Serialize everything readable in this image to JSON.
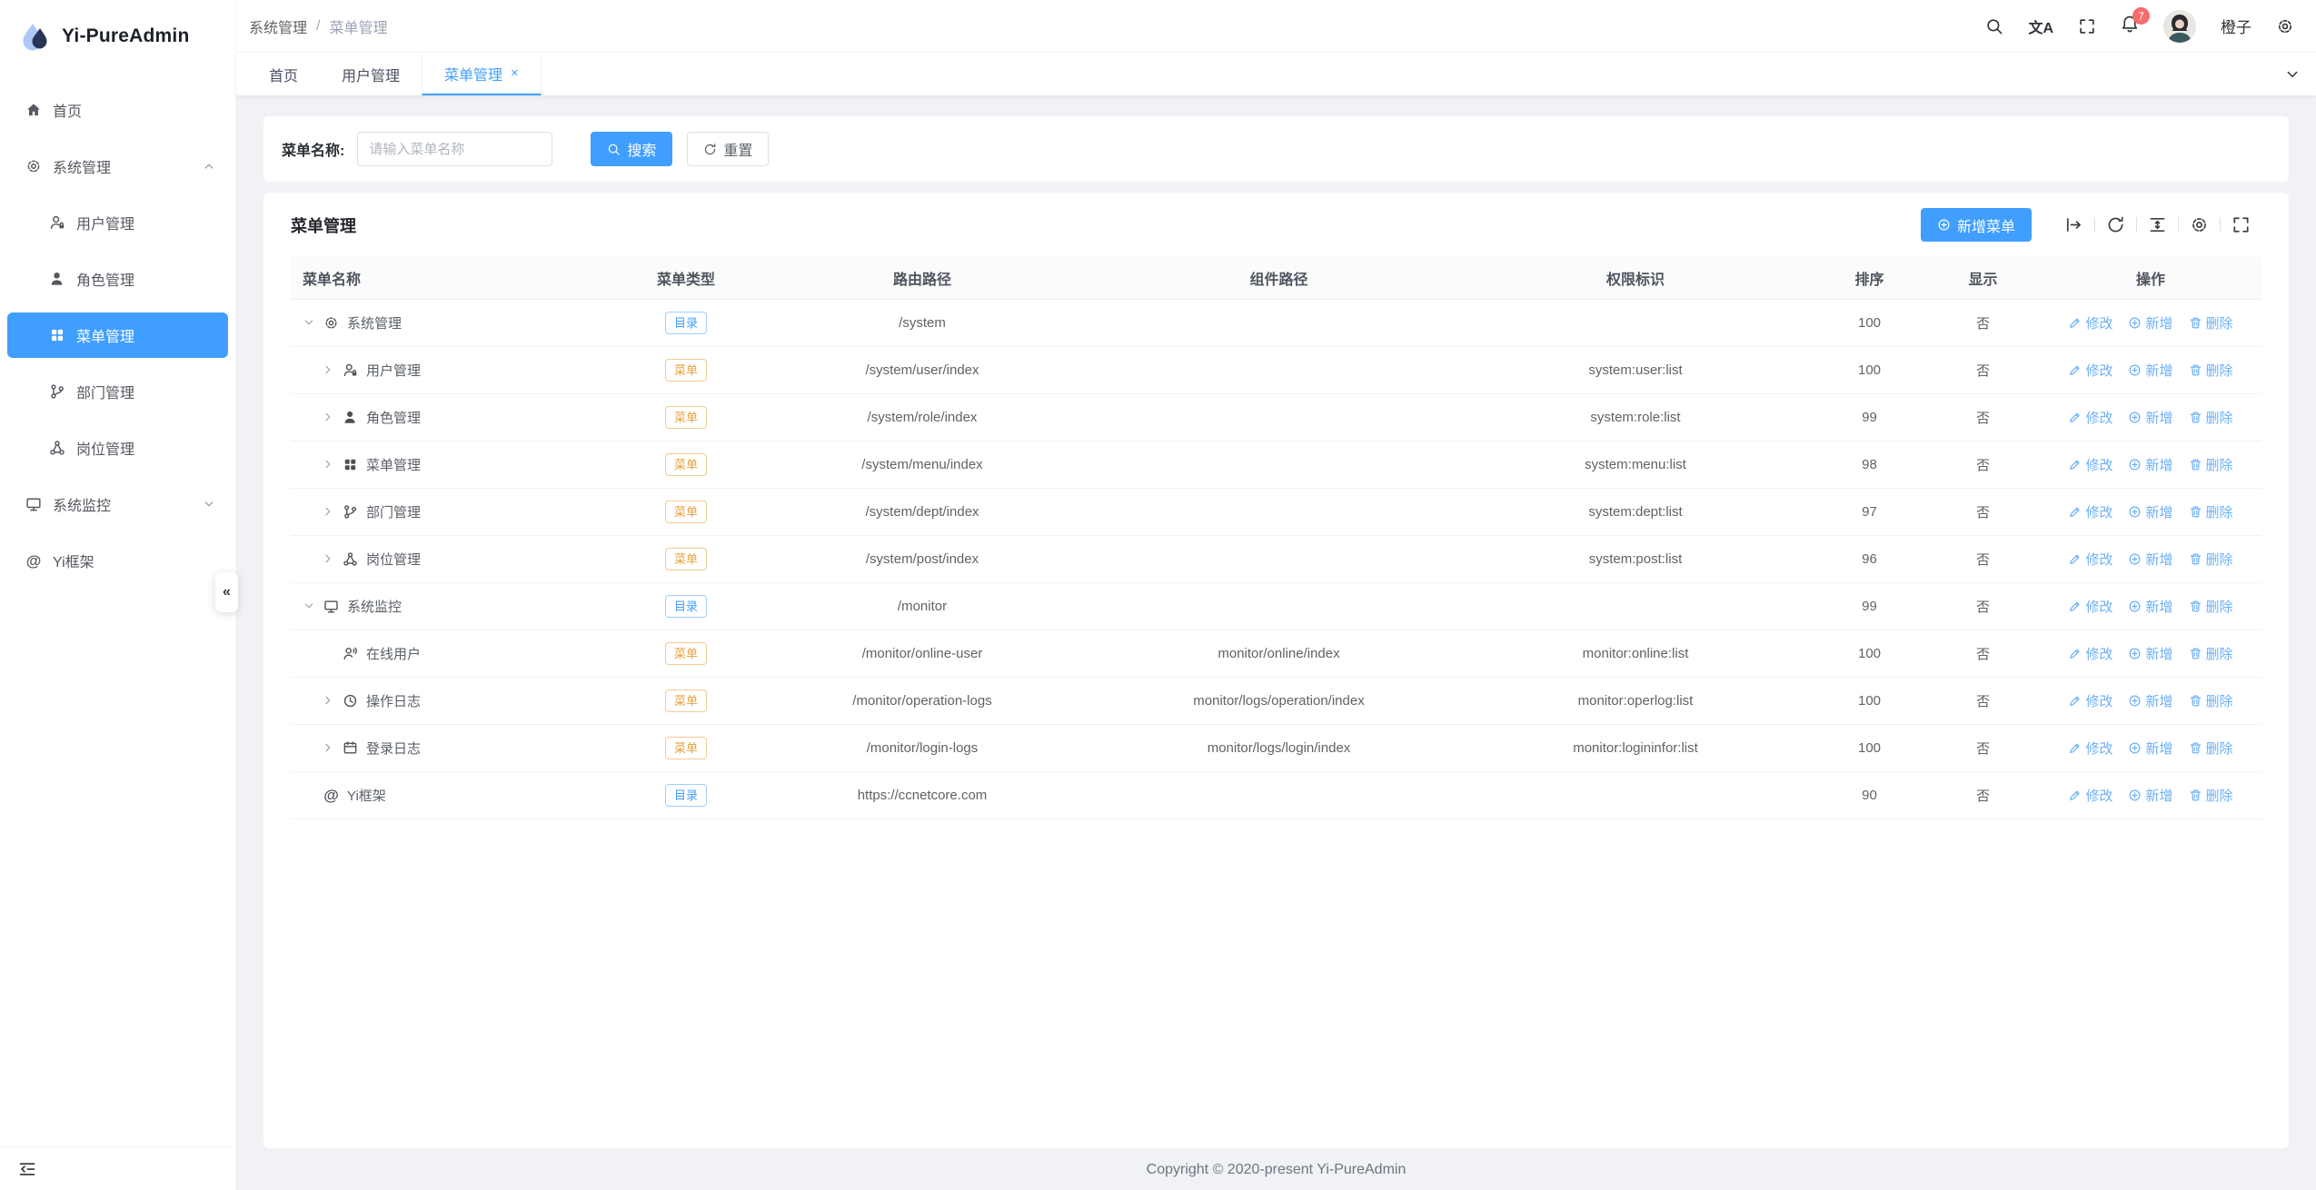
{
  "app": {
    "name": "Yi-PureAdmin"
  },
  "colors": {
    "primary": "#409eff",
    "badge": "#f56c6c",
    "tag_dir": "#409eff",
    "tag_menu": "#e6a23c",
    "active_menu_bg": "#409eff"
  },
  "sidebar": {
    "items": [
      {
        "id": "home",
        "label": "首页",
        "icon": "home-icon"
      },
      {
        "id": "system",
        "label": "系统管理",
        "icon": "gear-icon",
        "arrow": "up",
        "children": [
          {
            "id": "user",
            "label": "用户管理",
            "icon": "user-lock-icon"
          },
          {
            "id": "role",
            "label": "角色管理",
            "icon": "user-filled-icon"
          },
          {
            "id": "menu",
            "label": "菜单管理",
            "icon": "grid-icon",
            "active": true
          },
          {
            "id": "dept",
            "label": "部门管理",
            "icon": "dept-tree-icon"
          },
          {
            "id": "post",
            "label": "岗位管理",
            "icon": "post-nodes-icon"
          }
        ]
      },
      {
        "id": "monitor",
        "label": "系统监控",
        "icon": "monitor-icon",
        "arrow": "down"
      },
      {
        "id": "yi",
        "label": "Yi框架",
        "icon": "at-icon"
      }
    ],
    "collapse_icon": "menu-fold-icon",
    "collapse_handle": "«"
  },
  "header": {
    "breadcrumb": {
      "first": "系统管理",
      "separator": "/",
      "current": "菜单管理"
    },
    "badge_count": "7",
    "username": "橙子",
    "translate_label": "文A"
  },
  "tabs": {
    "items": [
      {
        "id": "home",
        "label": "首页"
      },
      {
        "id": "user",
        "label": "用户管理"
      },
      {
        "id": "menu",
        "label": "菜单管理",
        "active": true,
        "closable": true
      }
    ],
    "close_glyph": "×"
  },
  "search": {
    "label": "菜单名称:",
    "placeholder": "请输入菜单名称",
    "search_label": "搜索",
    "reset_label": "重置"
  },
  "card": {
    "title": "菜单管理",
    "add_label": "新增菜单",
    "toolbar": [
      "export-arrow-icon",
      "refresh-icon",
      "density-icon",
      "gear-icon",
      "fullscreen-icon"
    ]
  },
  "table": {
    "columns": [
      "菜单名称",
      "菜单类型",
      "路由路径",
      "组件路径",
      "权限标识",
      "排序",
      "显示",
      "操作"
    ],
    "action_labels": {
      "edit": "修改",
      "add": "新增",
      "delete": "删除"
    },
    "rows": [
      {
        "name": "系统管理",
        "icon": "gear-icon",
        "arrow": "down",
        "level": 0,
        "type_label": "目录",
        "type_kind": "dir",
        "route": "/system",
        "component": "",
        "perm": "",
        "sort": "100",
        "visible": "否"
      },
      {
        "name": "用户管理",
        "icon": "user-lock-icon",
        "arrow": "right",
        "level": 1,
        "type_label": "菜单",
        "type_kind": "menu",
        "route": "/system/user/index",
        "component": "",
        "perm": "system:user:list",
        "sort": "100",
        "visible": "否"
      },
      {
        "name": "角色管理",
        "icon": "user-filled-icon",
        "arrow": "right",
        "level": 1,
        "type_label": "菜单",
        "type_kind": "menu",
        "route": "/system/role/index",
        "component": "",
        "perm": "system:role:list",
        "sort": "99",
        "visible": "否"
      },
      {
        "name": "菜单管理",
        "icon": "grid-icon",
        "arrow": "right",
        "level": 1,
        "type_label": "菜单",
        "type_kind": "menu",
        "route": "/system/menu/index",
        "component": "",
        "perm": "system:menu:list",
        "sort": "98",
        "visible": "否"
      },
      {
        "name": "部门管理",
        "icon": "dept-tree-icon",
        "arrow": "right",
        "level": 1,
        "type_label": "菜单",
        "type_kind": "menu",
        "route": "/system/dept/index",
        "component": "",
        "perm": "system:dept:list",
        "sort": "97",
        "visible": "否"
      },
      {
        "name": "岗位管理",
        "icon": "post-nodes-icon",
        "arrow": "right",
        "level": 1,
        "type_label": "菜单",
        "type_kind": "menu",
        "route": "/system/post/index",
        "component": "",
        "perm": "system:post:list",
        "sort": "96",
        "visible": "否"
      },
      {
        "name": "系统监控",
        "icon": "monitor-icon",
        "arrow": "down",
        "level": 0,
        "type_label": "目录",
        "type_kind": "dir",
        "route": "/monitor",
        "component": "",
        "perm": "",
        "sort": "99",
        "visible": "否"
      },
      {
        "name": "在线用户",
        "icon": "online-user-icon",
        "arrow": "",
        "level": 1,
        "type_label": "菜单",
        "type_kind": "menu",
        "route": "/monitor/online-user",
        "component": "monitor/online/index",
        "perm": "monitor:online:list",
        "sort": "100",
        "visible": "否"
      },
      {
        "name": "操作日志",
        "icon": "clock-icon",
        "arrow": "right",
        "level": 1,
        "type_label": "菜单",
        "type_kind": "menu",
        "route": "/monitor/operation-logs",
        "component": "monitor/logs/operation/index",
        "perm": "monitor:operlog:list",
        "sort": "100",
        "visible": "否"
      },
      {
        "name": "登录日志",
        "icon": "calendar-icon",
        "arrow": "right",
        "level": 1,
        "type_label": "菜单",
        "type_kind": "menu",
        "route": "/monitor/login-logs",
        "component": "monitor/logs/login/index",
        "perm": "monitor:logininfor:list",
        "sort": "100",
        "visible": "否"
      },
      {
        "name": "Yi框架",
        "icon": "at-icon",
        "arrow": "",
        "level": 0,
        "type_label": "目录",
        "type_kind": "dir",
        "route": "https://ccnetcore.com",
        "component": "",
        "perm": "",
        "sort": "90",
        "visible": "否"
      }
    ]
  },
  "footer": {
    "copyright": "Copyright © 2020-present Yi-PureAdmin"
  }
}
